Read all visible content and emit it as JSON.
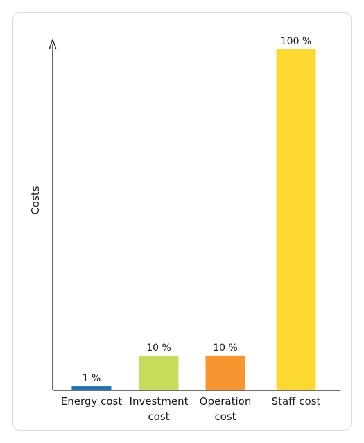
{
  "chart_data": {
    "type": "bar",
    "title": "",
    "xlabel": "",
    "ylabel": "Costs",
    "ylim": [
      0,
      100
    ],
    "grid": false,
    "legend": "none",
    "categories": [
      [
        "Energy cost"
      ],
      [
        "Investment",
        "cost"
      ],
      [
        "Operation",
        "cost"
      ],
      [
        "Staff cost"
      ]
    ],
    "values": [
      1,
      10,
      10,
      100
    ],
    "value_labels": [
      "1 %",
      "10 %",
      "10 %",
      "100 %"
    ],
    "colors": [
      "#1f73b7",
      "#c8dc5c",
      "#f7962f",
      "#fdd82e"
    ]
  }
}
